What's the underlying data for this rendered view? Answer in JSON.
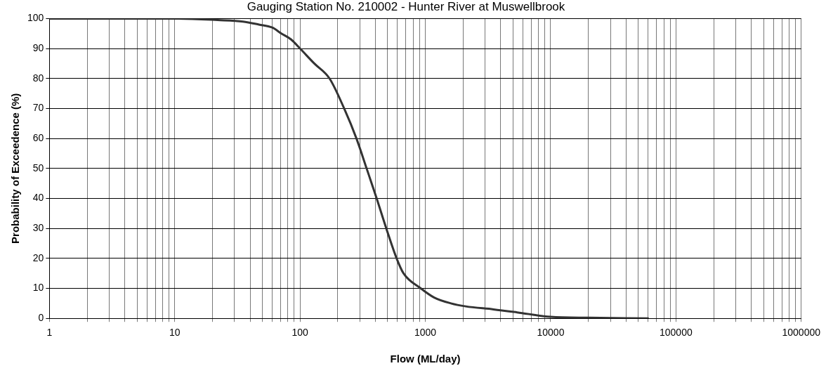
{
  "chart_data": {
    "type": "line",
    "title": "Gauging Station No. 210002 - Hunter River at Muswellbrook",
    "xlabel": "Flow (ML/day)",
    "ylabel": "Probability of Exceedence (%)",
    "log": "x",
    "grid": true,
    "legend": false,
    "marker": "none",
    "line_style": "solid",
    "xlim": [
      1,
      1000000
    ],
    "ylim": [
      0,
      100
    ],
    "xticks": [
      1,
      {
        "value": 2,
        "label": null
      },
      {
        "value": 3,
        "label": null
      },
      {
        "value": 4,
        "label": null
      },
      {
        "value": 5,
        "label": null
      },
      {
        "value": 6,
        "label": null
      },
      {
        "value": 7,
        "label": null
      },
      {
        "value": 8,
        "label": null
      },
      {
        "value": 9,
        "label": null
      },
      10,
      {
        "value": 20,
        "label": null
      },
      {
        "value": 30,
        "label": null
      },
      {
        "value": 40,
        "label": null
      },
      {
        "value": 50,
        "label": null
      },
      {
        "value": 60,
        "label": null
      },
      {
        "value": 70,
        "label": null
      },
      {
        "value": 80,
        "label": null
      },
      {
        "value": 90,
        "label": null
      },
      100,
      {
        "value": 200,
        "label": null
      },
      {
        "value": 300,
        "label": null
      },
      {
        "value": 400,
        "label": null
      },
      {
        "value": 500,
        "label": null
      },
      {
        "value": 600,
        "label": null
      },
      {
        "value": 700,
        "label": null
      },
      {
        "value": 800,
        "label": null
      },
      {
        "value": 900,
        "label": null
      },
      1000,
      {
        "value": 2000,
        "label": null
      },
      {
        "value": 3000,
        "label": null
      },
      {
        "value": 4000,
        "label": null
      },
      {
        "value": 5000,
        "label": null
      },
      {
        "value": 6000,
        "label": null
      },
      {
        "value": 7000,
        "label": null
      },
      {
        "value": 8000,
        "label": null
      },
      {
        "value": 9000,
        "label": null
      },
      10000,
      {
        "value": 20000,
        "label": null
      },
      {
        "value": 30000,
        "label": null
      },
      {
        "value": 40000,
        "label": null
      },
      {
        "value": 50000,
        "label": null
      },
      {
        "value": 60000,
        "label": null
      },
      {
        "value": 70000,
        "label": null
      },
      {
        "value": 80000,
        "label": null
      },
      {
        "value": 90000,
        "label": null
      },
      100000,
      {
        "value": 200000,
        "label": null
      },
      {
        "value": 300000,
        "label": null
      },
      {
        "value": 400000,
        "label": null
      },
      {
        "value": 500000,
        "label": null
      },
      {
        "value": 600000,
        "label": null
      },
      {
        "value": 700000,
        "label": null
      },
      {
        "value": 800000,
        "label": null
      },
      {
        "value": 900000,
        "label": null
      },
      1000000
    ],
    "yticks": [
      0,
      10,
      20,
      30,
      40,
      50,
      60,
      70,
      80,
      90,
      100
    ],
    "series": [
      {
        "color": "#333333",
        "x": [
          1,
          5,
          10,
          22,
          35,
          47,
          60,
          71,
          85,
          100,
          130,
          172,
          225,
          282,
          340,
          409,
          488,
          590,
          670,
          920,
          1170,
          1600,
          2100,
          3500,
          5400,
          10000,
          20000,
          60000
        ],
        "values": [
          100,
          100,
          100,
          99.5,
          99,
          98,
          97,
          95,
          93,
          90,
          85,
          80,
          70,
          60,
          50,
          40,
          30,
          20,
          15,
          10,
          7,
          5,
          4,
          3,
          2,
          0.5,
          0.2,
          0
        ]
      }
    ]
  }
}
